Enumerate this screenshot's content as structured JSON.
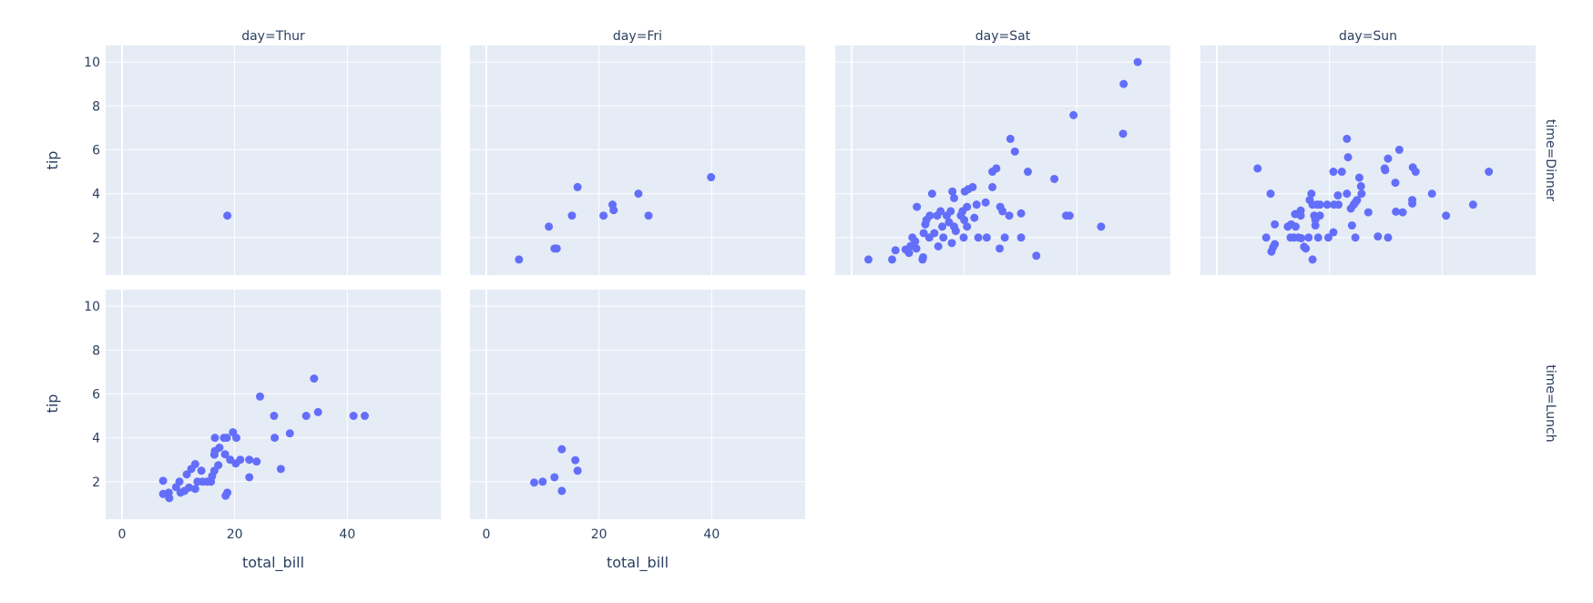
{
  "chart_data": {
    "type": "scatter",
    "title": "",
    "xlabel": "total_bill",
    "ylabel": "tip",
    "xlim": [
      -2.9,
      56.6
    ],
    "ylim": [
      0.29,
      10.75
    ],
    "x_ticks": [
      0,
      20,
      40
    ],
    "y_ticks": [
      2,
      4,
      6,
      8,
      10
    ],
    "grid": true,
    "marker_color": "#636efa",
    "background_color": "#E5ECF6",
    "text_color": "#2a3f5f",
    "facet_col": "day",
    "facet_row": "time",
    "columns": [
      "day=Thur",
      "day=Fri",
      "day=Sat",
      "day=Sun"
    ],
    "rows": [
      "time=Dinner",
      "time=Lunch"
    ],
    "panels": [
      {
        "row": 0,
        "col": 0,
        "label": "Thur / Dinner",
        "x": [
          18.7
        ],
        "y": [
          3.0
        ]
      },
      {
        "row": 0,
        "col": 1,
        "label": "Fri / Dinner",
        "x": [
          5.8,
          11.1,
          12.1,
          12.5,
          15.2,
          16.2,
          20.8,
          22.4,
          22.6,
          27.0,
          28.8,
          39.9
        ],
        "y": [
          1.0,
          2.5,
          1.5,
          1.5,
          3.0,
          4.3,
          3.0,
          3.5,
          3.25,
          4.0,
          3.0,
          4.75
        ]
      },
      {
        "row": 0,
        "col": 2,
        "label": "Sat / Dinner",
        "x": [
          50.8,
          48.3,
          39.4,
          48.2,
          28.2,
          29.0,
          3.0,
          7.2,
          7.8,
          9.6,
          10.2,
          10.5,
          10.8,
          11.3,
          11.6,
          11.5,
          12.6,
          12.7,
          12.8,
          13.1,
          13.3,
          13.8,
          13.9,
          14.3,
          14.7,
          15.2,
          15.4,
          15.8,
          16.1,
          16.3,
          16.9,
          17.3,
          17.6,
          17.8,
          17.9,
          18.2,
          18.2,
          18.5,
          19.4,
          19.7,
          19.9,
          20.0,
          20.1,
          20.5,
          20.5,
          20.7,
          21.5,
          21.8,
          22.2,
          22.5,
          23.8,
          24.0,
          25.0,
          25.0,
          25.7,
          26.3,
          26.4,
          26.8,
          27.2,
          28.0,
          31.3,
          36.0,
          30.1,
          38.1,
          38.7,
          44.3,
          30.1,
          32.8
        ],
        "y": [
          10.0,
          9.0,
          7.58,
          6.73,
          6.5,
          5.92,
          1.0,
          1.0,
          1.42,
          1.46,
          1.3,
          1.62,
          2.0,
          1.83,
          3.4,
          1.5,
          1.0,
          1.1,
          2.2,
          2.6,
          2.8,
          2.0,
          3.0,
          4.0,
          2.2,
          3.0,
          1.6,
          3.2,
          2.5,
          2.0,
          3.0,
          2.7,
          3.2,
          1.75,
          4.1,
          3.8,
          2.5,
          2.3,
          3.0,
          3.2,
          2.0,
          2.8,
          4.1,
          3.4,
          2.5,
          4.2,
          4.3,
          2.9,
          3.5,
          2.0,
          3.6,
          2.0,
          4.3,
          5.0,
          5.15,
          1.5,
          3.4,
          3.2,
          2.0,
          3.0,
          5.0,
          4.67,
          3.1,
          3.0,
          3.0,
          2.5,
          2.0,
          1.17
        ]
      },
      {
        "row": 0,
        "col": 3,
        "label": "Sun / Dinner",
        "x": [
          7.25,
          9.55,
          8.77,
          10.3,
          9.7,
          10.0,
          10.3,
          12.6,
          13.2,
          14.0,
          13.1,
          13.7,
          14.5,
          15.0,
          13.9,
          14.9,
          14.9,
          15.5,
          15.8,
          16.3,
          17.0,
          16.5,
          16.8,
          17.0,
          17.8,
          18.3,
          17.3,
          17.5,
          17.5,
          18.3,
          18.0,
          19.6,
          19.8,
          20.7,
          20.7,
          20.8,
          21.6,
          21.5,
          22.2,
          23.1,
          23.1,
          23.3,
          23.8,
          24.0,
          24.3,
          24.6,
          24.6,
          24.9,
          25.3,
          25.6,
          25.7,
          26.9,
          28.6,
          29.8,
          29.9,
          30.4,
          30.4,
          31.7,
          31.8,
          32.4,
          33.0,
          34.7,
          34.7,
          34.8,
          35.3,
          38.2,
          40.7,
          45.5,
          48.3
        ],
        "y": [
          5.15,
          4.0,
          2.0,
          2.6,
          1.36,
          1.56,
          1.7,
          2.5,
          2.6,
          2.5,
          2.0,
          2.0,
          2.0,
          1.97,
          3.07,
          3.23,
          3.0,
          1.58,
          1.5,
          2.0,
          1.0,
          3.71,
          4.0,
          3.5,
          3.5,
          3.5,
          3.0,
          2.8,
          2.55,
          3.0,
          2.0,
          3.5,
          2.0,
          2.24,
          5.0,
          3.5,
          3.5,
          3.92,
          5.0,
          4.0,
          6.5,
          5.66,
          3.32,
          2.55,
          3.5,
          2.0,
          3.6,
          3.71,
          4.73,
          4.34,
          4.0,
          3.15,
          2.05,
          5.15,
          5.07,
          5.6,
          2.0,
          4.5,
          3.18,
          6.0,
          3.15,
          3.71,
          3.55,
          5.2,
          5.0,
          4.0,
          3.0,
          3.5,
          5.0
        ]
      },
      {
        "row": 1,
        "col": 0,
        "label": "Thur / Lunch",
        "x": [
          24.5,
          27.0,
          29.8,
          27.1,
          28.2,
          22.6,
          22.6,
          23.9,
          21.0,
          20.2,
          19.2,
          16.5,
          18.1,
          18.6,
          19.7,
          20.3,
          17.3,
          16.5,
          16.4,
          18.3,
          17.1,
          16.4,
          16.0,
          15.8,
          14.1,
          13.0,
          12.3,
          11.5,
          10.2,
          7.3,
          7.3,
          8.3,
          8.4,
          9.6,
          10.4,
          11.1,
          11.9,
          13.0,
          13.4,
          14.3,
          15.1,
          18.7,
          18.4,
          34.1,
          32.7,
          34.8,
          41.1,
          43.1
        ],
        "y": [
          5.88,
          5.0,
          4.2,
          4.0,
          2.58,
          2.2,
          3.0,
          2.92,
          3.0,
          2.83,
          3.0,
          4.0,
          4.0,
          4.0,
          4.25,
          4.0,
          3.55,
          3.4,
          3.23,
          3.25,
          2.75,
          2.5,
          2.25,
          2.0,
          2.5,
          2.8,
          2.58,
          2.33,
          2.0,
          2.04,
          1.44,
          1.5,
          1.25,
          1.75,
          1.5,
          1.58,
          1.73,
          1.67,
          2.0,
          2.0,
          2.0,
          1.5,
          1.36,
          6.7,
          5.0,
          5.17,
          5.0,
          5.0
        ]
      },
      {
        "row": 1,
        "col": 1,
        "label": "Fri / Lunch",
        "x": [
          8.5,
          10.0,
          12.1,
          13.4,
          13.4,
          15.8,
          16.2
        ],
        "y": [
          1.96,
          2.0,
          2.2,
          3.48,
          1.58,
          2.98,
          2.5
        ]
      }
    ]
  }
}
